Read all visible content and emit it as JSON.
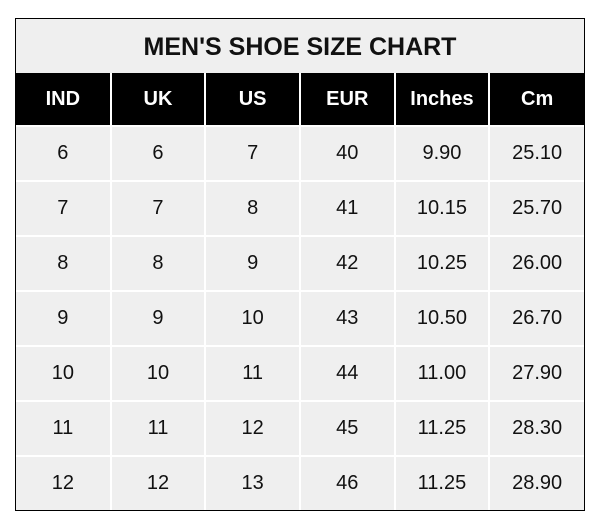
{
  "title": "MEN'S SHOE SIZE CHART",
  "columns": [
    "IND",
    "UK",
    "US",
    "EUR",
    "Inches",
    "Cm"
  ],
  "rows": [
    [
      "6",
      "6",
      "7",
      "40",
      "9.90",
      "25.10"
    ],
    [
      "7",
      "7",
      "8",
      "41",
      "10.15",
      "25.70"
    ],
    [
      "8",
      "8",
      "9",
      "42",
      "10.25",
      "26.00"
    ],
    [
      "9",
      "9",
      "10",
      "43",
      "10.50",
      "26.70"
    ],
    [
      "10",
      "10",
      "11",
      "44",
      "11.00",
      "27.90"
    ],
    [
      "11",
      "11",
      "12",
      "45",
      "11.25",
      "28.30"
    ],
    [
      "12",
      "12",
      "13",
      "46",
      "11.25",
      "28.90"
    ]
  ],
  "colors": {
    "header_bg": "#000000",
    "header_text": "#ffffff",
    "cell_bg": "#efefef",
    "grid": "#ffffff"
  }
}
